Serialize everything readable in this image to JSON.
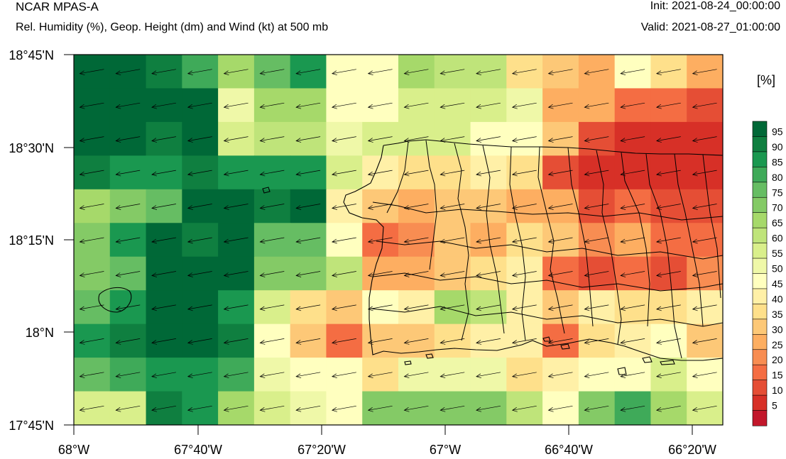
{
  "header": {
    "model": "NCAR MPAS-A",
    "subtitle": "Rel. Humidity (%), Geop. Height (dm) and Wind (kt) at 500 mb",
    "init": "Init: 2021-08-24_00:00:00",
    "valid": "Valid: 2021-08-27_01:00:00"
  },
  "axes": {
    "lat_labels": [
      "18°45'N",
      "18°30'N",
      "18°15'N",
      "18°N",
      "17°45'N"
    ],
    "lon_labels": [
      "68°W",
      "67°40'W",
      "67°20'W",
      "67°W",
      "66°40'W",
      "66°20'W"
    ]
  },
  "colorbar": {
    "unit": "[%]",
    "tick_labels": [
      "95",
      "90",
      "85",
      "80",
      "75",
      "70",
      "65",
      "60",
      "55",
      "50",
      "45",
      "40",
      "35",
      "30",
      "25",
      "20",
      "15",
      "10",
      "5"
    ],
    "colors_low_to_high": [
      "#a50026",
      "#c2172b",
      "#d73027",
      "#e54e35",
      "#f46d43",
      "#f88d52",
      "#fdae61",
      "#fdc877",
      "#fee08b",
      "#fff0a7",
      "#ffffbf",
      "#eff8a8",
      "#d9ef8b",
      "#bfe47a",
      "#a6d96a",
      "#84ca66",
      "#66bd63",
      "#3faa59",
      "#1a9850",
      "#0f7f40",
      "#006837"
    ]
  },
  "field": {
    "rows_top_to_bottom": [
      [
        20,
        20,
        19,
        17,
        14,
        16,
        18,
        10,
        10,
        14,
        13,
        13,
        8,
        7,
        6,
        10,
        8,
        6
      ],
      [
        20,
        20,
        20,
        20,
        11,
        14,
        14,
        10,
        10,
        12,
        12,
        12,
        11,
        6,
        6,
        4,
        4,
        3
      ],
      [
        20,
        20,
        19,
        20,
        12,
        13,
        13,
        11,
        12,
        12,
        12,
        10,
        10,
        7,
        3,
        2,
        2,
        2
      ],
      [
        19,
        18,
        18,
        19,
        18,
        18,
        18,
        12,
        9,
        8,
        8,
        9,
        8,
        3,
        2,
        2,
        2,
        2
      ],
      [
        14,
        15,
        16,
        20,
        20,
        19,
        20,
        9,
        7,
        6,
        7,
        7,
        6,
        6,
        3,
        4,
        3,
        3
      ],
      [
        15,
        18,
        20,
        19,
        20,
        16,
        16,
        10,
        4,
        5,
        7,
        6,
        8,
        7,
        5,
        6,
        4,
        4
      ],
      [
        15,
        16,
        20,
        20,
        20,
        15,
        15,
        13,
        6,
        6,
        7,
        8,
        9,
        4,
        3,
        4,
        3,
        5
      ],
      [
        16,
        18,
        20,
        20,
        18,
        12,
        8,
        7,
        10,
        9,
        14,
        13,
        9,
        7,
        9,
        8,
        8,
        9
      ],
      [
        18,
        19,
        20,
        20,
        19,
        10,
        7,
        4,
        7,
        7,
        8,
        9,
        9,
        4,
        8,
        9,
        10,
        7
      ],
      [
        16,
        17,
        18,
        18,
        17,
        11,
        10,
        10,
        8,
        11,
        11,
        11,
        8,
        9,
        10,
        10,
        12,
        10
      ],
      [
        12,
        12,
        19,
        18,
        14,
        12,
        11,
        10,
        15,
        15,
        15,
        15,
        13,
        10,
        15,
        17,
        14,
        12
      ]
    ]
  }
}
